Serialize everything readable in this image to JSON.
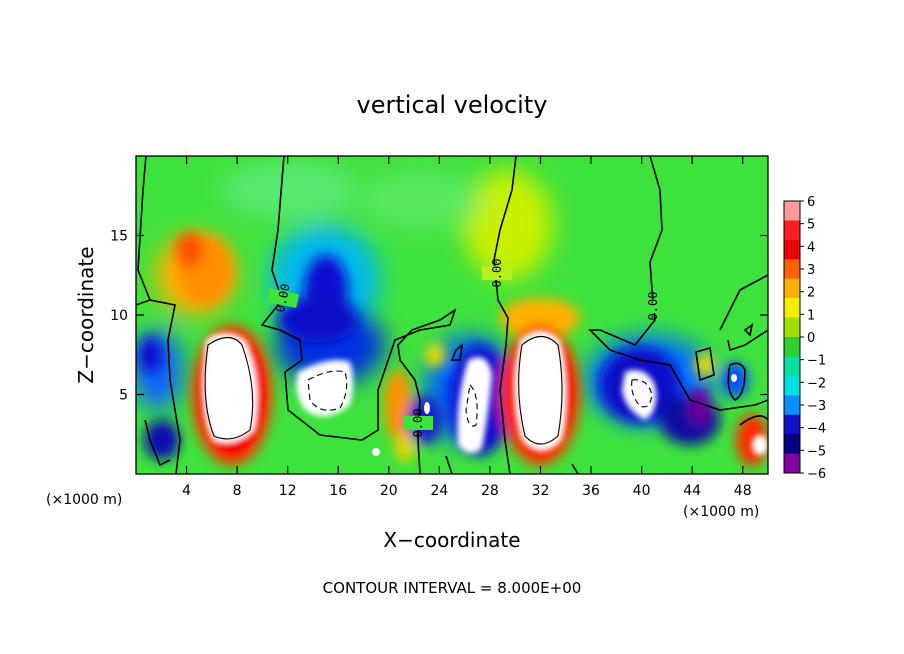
{
  "chart_data": {
    "type": "heatmap",
    "title": "vertical velocity",
    "xlabel": "X−coordinate",
    "ylabel": "Z−coordinate",
    "x_unit_left": "(×1000 m)",
    "x_unit_right": "(×1000 m)",
    "xlim": [
      0,
      50
    ],
    "ylim": [
      0,
      20
    ],
    "x_ticks": [
      4,
      8,
      12,
      16,
      20,
      24,
      28,
      32,
      36,
      40,
      44,
      48
    ],
    "y_ticks": [
      5,
      10,
      15
    ],
    "colorbar": {
      "min": -6,
      "max": 6,
      "ticks": [
        "6",
        "5",
        "4",
        "3",
        "2",
        "1",
        "0",
        "−1",
        "−2",
        "−3",
        "−4",
        "−5",
        "−6"
      ],
      "colors": [
        "#ff9a9a",
        "#ff2020",
        "#e80000",
        "#ff6000",
        "#ffb000",
        "#f0f000",
        "#a0e000",
        "#30d030",
        "#00e0a0",
        "#00e0e0",
        "#0090ff",
        "#1010c8",
        "#000080",
        "#8000a0"
      ]
    },
    "contour_label": "0.00",
    "contour_interval_text": "CONTOUR INTERVAL = 8.000E+00",
    "features": [
      {
        "kind": "updraft",
        "x": 7.5,
        "z": 6,
        "peak": 25
      },
      {
        "kind": "updraft",
        "x": 32.5,
        "z": 6,
        "peak": 25
      },
      {
        "kind": "updraft",
        "x": 5.5,
        "z": 14,
        "peak": 3
      },
      {
        "kind": "updraft",
        "x": 32,
        "z": 15,
        "peak": 1.5
      },
      {
        "kind": "updraft",
        "x": 49.5,
        "z": 2,
        "peak": 10
      },
      {
        "kind": "updraft",
        "x": 20.5,
        "z": 5,
        "peak": 4
      },
      {
        "kind": "downdraft",
        "x": 16,
        "z": 5,
        "peak": -12
      },
      {
        "kind": "downdraft",
        "x": 26,
        "z": 4,
        "peak": -10
      },
      {
        "kind": "downdraft",
        "x": 39.5,
        "z": 5,
        "peak": -9
      },
      {
        "kind": "downdraft",
        "x": 16,
        "z": 11,
        "peak": -5
      },
      {
        "kind": "downdraft",
        "x": 43,
        "z": 3,
        "peak": -5
      },
      {
        "kind": "downdraft",
        "x": 1,
        "z": 8,
        "peak": -4
      }
    ]
  }
}
